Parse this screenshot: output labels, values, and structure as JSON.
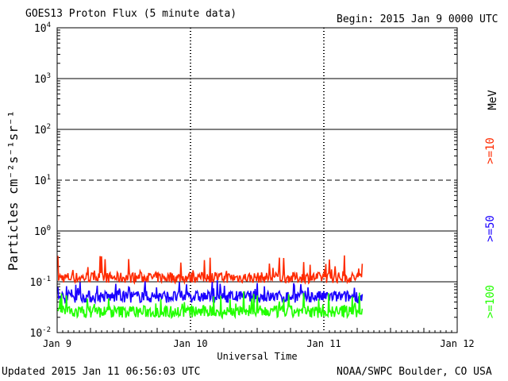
{
  "header": {
    "title": "GOES13 Proton Flux (5 minute data)",
    "begin": "Begin: 2015 Jan 9 0000 UTC"
  },
  "footer": {
    "updated": "Updated 2015 Jan 11 06:56:03 UTC",
    "source": "NOAA/SWPC Boulder, CO USA"
  },
  "chart_data": {
    "type": "line",
    "title": "GOES13 Proton Flux (5 minute data)",
    "xlabel": "Universal Time",
    "ylabel": "Particles cm⁻²s⁻¹sr⁻¹",
    "yscale": "log",
    "ylim": [
      0.01,
      10000
    ],
    "xlim": [
      "2015-01-09 00:00",
      "2015-01-12 00:00"
    ],
    "x_ticks": [
      "Jan 9",
      "Jan 10",
      "Jan 11",
      "Jan 12"
    ],
    "y_ticks": [
      {
        "value": 0.01,
        "base": "10",
        "exp": "-2"
      },
      {
        "value": 0.1,
        "base": "10",
        "exp": "-1"
      },
      {
        "value": 1,
        "base": "10",
        "exp": "0"
      },
      {
        "value": 10,
        "base": "10",
        "exp": "1"
      },
      {
        "value": 100,
        "base": "10",
        "exp": "2"
      },
      {
        "value": 1000,
        "base": "10",
        "exp": "3"
      },
      {
        "value": 10000,
        "base": "10",
        "exp": "4"
      }
    ],
    "threshold_lines": [
      {
        "value": 10,
        "style": "dashed"
      }
    ],
    "data_end": "2015-01-11 07:00",
    "legend_unit": "MeV",
    "series": [
      {
        "name": ">=10",
        "color": "#ff2a00",
        "typical": 0.13,
        "min": 0.08,
        "max": 0.35
      },
      {
        "name": ">=50",
        "color": "#1a00ff",
        "typical": 0.055,
        "min": 0.032,
        "max": 0.11
      },
      {
        "name": ">=100",
        "color": "#22ff00",
        "typical": 0.028,
        "min": 0.016,
        "max": 0.065
      }
    ]
  }
}
